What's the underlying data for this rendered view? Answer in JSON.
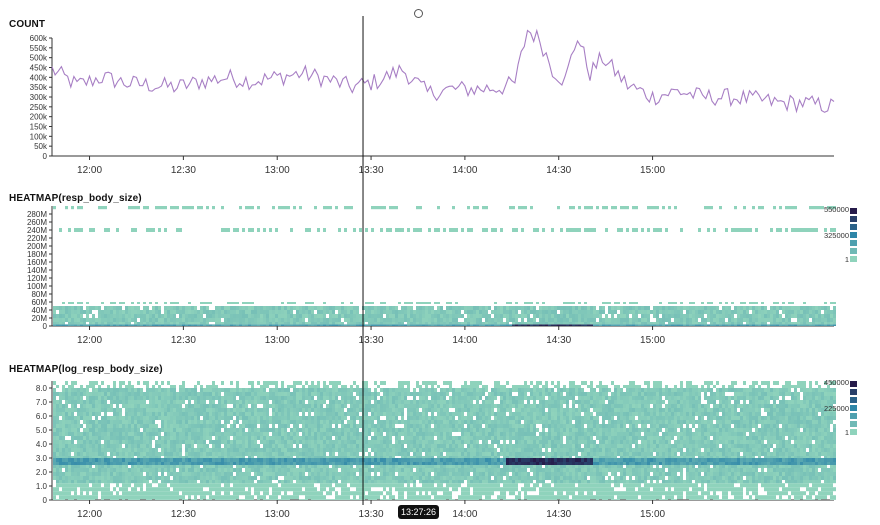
{
  "cursor": {
    "time_label": "13:27:26",
    "time_minutes": 807.43
  },
  "colors": {
    "line": "#a77ec4",
    "heat_low": "#8fd3bc",
    "heat_mid": "#2e86a8",
    "heat_high": "#261b4a",
    "axis": "#333333"
  },
  "chart_data": [
    {
      "type": "line",
      "title": "COUNT",
      "x_range": [
        "11:48",
        "15:58"
      ],
      "x_ticks": [
        "12:00",
        "12:30",
        "13:00",
        "13:30",
        "14:00",
        "14:30",
        "15:00"
      ],
      "y_ticks": [
        "0",
        "50k",
        "100k",
        "150k",
        "200k",
        "250k",
        "300k",
        "350k",
        "400k",
        "450k",
        "500k",
        "550k",
        "600k"
      ],
      "ylim": [
        0,
        600000
      ],
      "series": [
        {
          "x": [
            "11:48",
            "11:56",
            "12:04",
            "12:12",
            "12:20",
            "12:28",
            "12:36",
            "12:44",
            "12:52",
            "13:00",
            "13:08",
            "13:16",
            "13:24",
            "13:32",
            "13:40",
            "13:48",
            "13:56",
            "14:04",
            "14:12",
            "14:16",
            "14:20",
            "14:24",
            "14:28",
            "14:32",
            "14:36",
            "14:40",
            "14:44",
            "14:52",
            "15:00",
            "15:08",
            "15:16",
            "15:24",
            "15:32",
            "15:40",
            "15:48",
            "15:58"
          ],
          "values": [
            440000,
            360000,
            400000,
            370000,
            360000,
            350000,
            380000,
            400000,
            380000,
            400000,
            420000,
            390000,
            350000,
            380000,
            440000,
            320000,
            340000,
            340000,
            350000,
            370000,
            640000,
            590000,
            440000,
            380000,
            610000,
            420000,
            500000,
            360000,
            300000,
            330000,
            300000,
            300000,
            290000,
            270000,
            270000,
            250000
          ]
        }
      ]
    },
    {
      "type": "heatmap",
      "title": "HEATMAP(resp_body_size)",
      "x_range": [
        "11:48",
        "15:58"
      ],
      "x_ticks": [
        "12:00",
        "12:30",
        "13:00",
        "13:30",
        "14:00",
        "14:30",
        "15:00"
      ],
      "y_ticks": [
        "0",
        "20M",
        "40M",
        "60M",
        "80M",
        "100M",
        "120M",
        "140M",
        "160M",
        "180M",
        "200M",
        "220M",
        "240M",
        "260M",
        "280M"
      ],
      "ylim": [
        0,
        300000000
      ],
      "legend_ticks": [
        "550000",
        "325000",
        "1"
      ],
      "bands": [
        {
          "y": [
            0,
            4000000
          ],
          "density": "high",
          "dense_window": [
            "14:15",
            "14:40"
          ]
        },
        {
          "y": [
            4000000,
            50000000
          ],
          "density": "medium"
        },
        {
          "y": [
            55000000,
            60000000
          ],
          "density": "sparse"
        },
        {
          "y": [
            235000000,
            245000000
          ],
          "density": "sparse"
        },
        {
          "y": [
            292000000,
            300000000
          ],
          "density": "sparse"
        }
      ]
    },
    {
      "type": "heatmap",
      "title": "HEATMAP(log_resp_body_size)",
      "x_range": [
        "11:48",
        "15:58"
      ],
      "x_ticks": [
        "12:00",
        "12:30",
        "13:00",
        "13:30",
        "14:00",
        "14:30",
        "15:00"
      ],
      "y_ticks": [
        "0",
        "1.0",
        "2.0",
        "3.0",
        "4.0",
        "5.0",
        "6.0",
        "7.0",
        "8.0"
      ],
      "ylim": [
        0,
        8.5
      ],
      "legend_ticks": [
        "450000",
        "225000",
        "1"
      ],
      "bands": [
        {
          "y": [
            0,
            1.2
          ],
          "density": "low"
        },
        {
          "y": [
            1.2,
            8.0
          ],
          "density": "medium"
        },
        {
          "y": [
            2.5,
            3.0
          ],
          "density": "high",
          "dense_window": [
            "14:13",
            "14:40"
          ]
        },
        {
          "y": [
            8.0,
            8.5
          ],
          "density": "sparse"
        }
      ]
    }
  ]
}
